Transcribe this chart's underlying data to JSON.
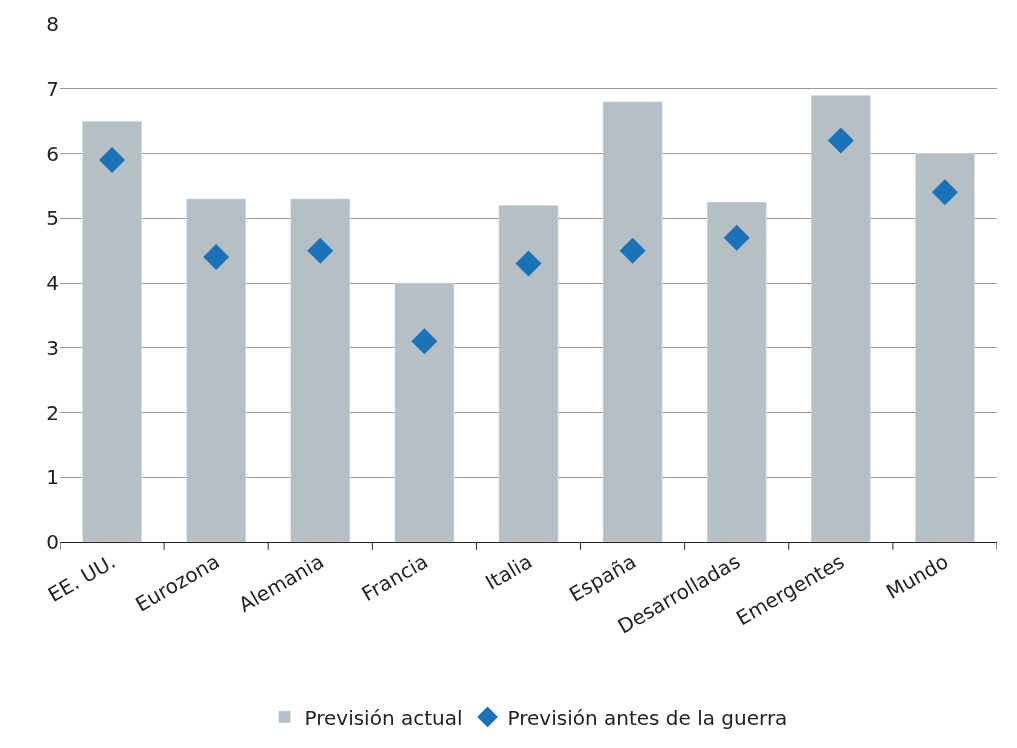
{
  "chart_data": {
    "type": "bar",
    "categories": [
      "EE. UU.",
      "Eurozona",
      "Alemania",
      "Francia",
      "Italia",
      "España",
      "Desarrolladas",
      "Emergentes",
      "Mundo"
    ],
    "series": [
      {
        "name": "Previsión actual",
        "color": "#b6c0c4",
        "values": [
          6.5,
          5.3,
          5.3,
          4.0,
          5.2,
          6.8,
          5.25,
          6.9,
          6.0
        ]
      },
      {
        "name": "Previsión antes de la guerra",
        "type": "scatter",
        "color": "#1a73b8",
        "marker": "diamond",
        "values": [
          5.9,
          4.4,
          4.5,
          3.1,
          4.3,
          4.5,
          4.7,
          6.2,
          5.4
        ]
      }
    ],
    "ylim": [
      0,
      8
    ],
    "yticks": [
      0,
      1,
      2,
      3,
      4,
      5,
      6,
      7,
      8
    ],
    "grid": "y",
    "legend": "bottom"
  }
}
